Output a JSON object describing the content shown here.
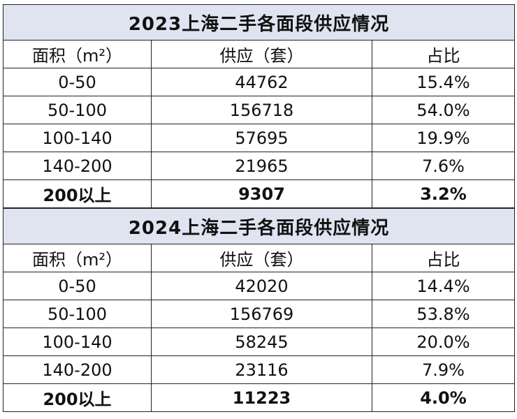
{
  "tables": [
    {
      "title": "2023上海二手各面段供应情况",
      "header": [
        "面积（m²）",
        "供应（套）",
        "占比"
      ],
      "rows": [
        [
          "0-50",
          "44762",
          "15.4%"
        ],
        [
          "50-100",
          "156718",
          "54.0%"
        ],
        [
          "100-140",
          "57695",
          "19.9%"
        ],
        [
          "140-200",
          "21965",
          "7.6%"
        ],
        [
          "200以上",
          "9307",
          "3.2%"
        ]
      ]
    },
    {
      "title": "2024上海二手各面段供应情况",
      "header": [
        "面积（m²）",
        "供应（套）",
        "占比"
      ],
      "rows": [
        [
          "0-50",
          "42020",
          "14.4%"
        ],
        [
          "50-100",
          "156769",
          "53.8%"
        ],
        [
          "100-140",
          "58245",
          "20.0%"
        ],
        [
          "140-200",
          "23116",
          "7.9%"
        ],
        [
          "200以上",
          "11223",
          "4.0%"
        ]
      ]
    }
  ]
}
